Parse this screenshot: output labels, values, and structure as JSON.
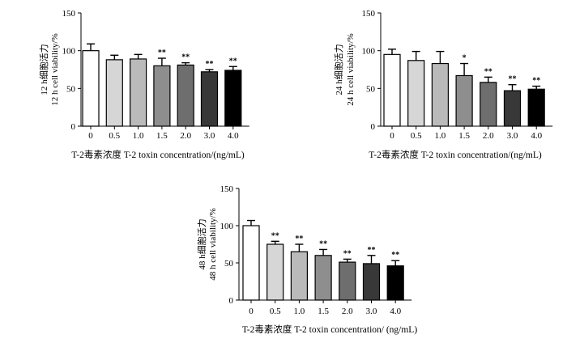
{
  "chart_data": [
    {
      "type": "bar",
      "categories": [
        "0",
        "0.5",
        "1.0",
        "1.5",
        "2.0",
        "3.0",
        "4.0"
      ],
      "values": [
        100,
        88,
        89,
        80,
        81,
        72,
        74
      ],
      "errors": [
        9,
        6,
        6,
        10,
        3,
        3,
        5
      ],
      "significance": [
        "",
        "",
        "",
        "**",
        "**",
        "**",
        "**"
      ],
      "ylabel_cn": "12  h细胞活力",
      "ylabel_en": "12 h cell viability/%",
      "xlabel": "T-2毒素浓度  T-2  toxin concentration/(ng/mL)",
      "ylim": [
        0,
        150
      ],
      "yticks": [
        "0",
        "50",
        "100",
        "150"
      ],
      "bar_colors": [
        "#ffffff",
        "#d6d6d6",
        "#bababa",
        "#8e8e8e",
        "#6e6e6e",
        "#383838",
        "#000000"
      ]
    },
    {
      "type": "bar",
      "categories": [
        "0",
        "0.5",
        "1.0",
        "1.5",
        "2.0",
        "3.0",
        "4.0"
      ],
      "values": [
        95,
        87,
        83,
        67,
        58,
        47,
        49
      ],
      "errors": [
        7,
        12,
        16,
        16,
        7,
        8,
        4
      ],
      "significance": [
        "",
        "",
        "",
        "*",
        "**",
        "**",
        "**"
      ],
      "ylabel_cn": "24  h细胞活力",
      "ylabel_en": "24 h cell viability/%",
      "xlabel": "T-2毒素浓度  T-2  toxin concentration/(ng/mL)",
      "ylim": [
        0,
        150
      ],
      "yticks": [
        "0",
        "50",
        "100",
        "150"
      ],
      "bar_colors": [
        "#ffffff",
        "#d6d6d6",
        "#bababa",
        "#8e8e8e",
        "#6e6e6e",
        "#383838",
        "#000000"
      ]
    },
    {
      "type": "bar",
      "categories": [
        "0",
        "0.5",
        "1.0",
        "1.5",
        "2.0",
        "3.0",
        "4.0"
      ],
      "values": [
        100,
        75,
        65,
        60,
        51,
        49,
        46
      ],
      "errors": [
        7,
        4,
        10,
        8,
        4,
        11,
        7
      ],
      "significance": [
        "",
        "**",
        "**",
        "**",
        "**",
        "**",
        "**"
      ],
      "ylabel_cn": "48  h细胞活力",
      "ylabel_en": "48 h cell viability/%",
      "xlabel": "T-2毒素浓度  T-2  toxin concentration/ (ng/mL)",
      "ylim": [
        0,
        150
      ],
      "yticks": [
        "0",
        "50",
        "100",
        "150"
      ],
      "bar_colors": [
        "#ffffff",
        "#d6d6d6",
        "#bababa",
        "#8e8e8e",
        "#6e6e6e",
        "#383838",
        "#000000"
      ]
    }
  ]
}
